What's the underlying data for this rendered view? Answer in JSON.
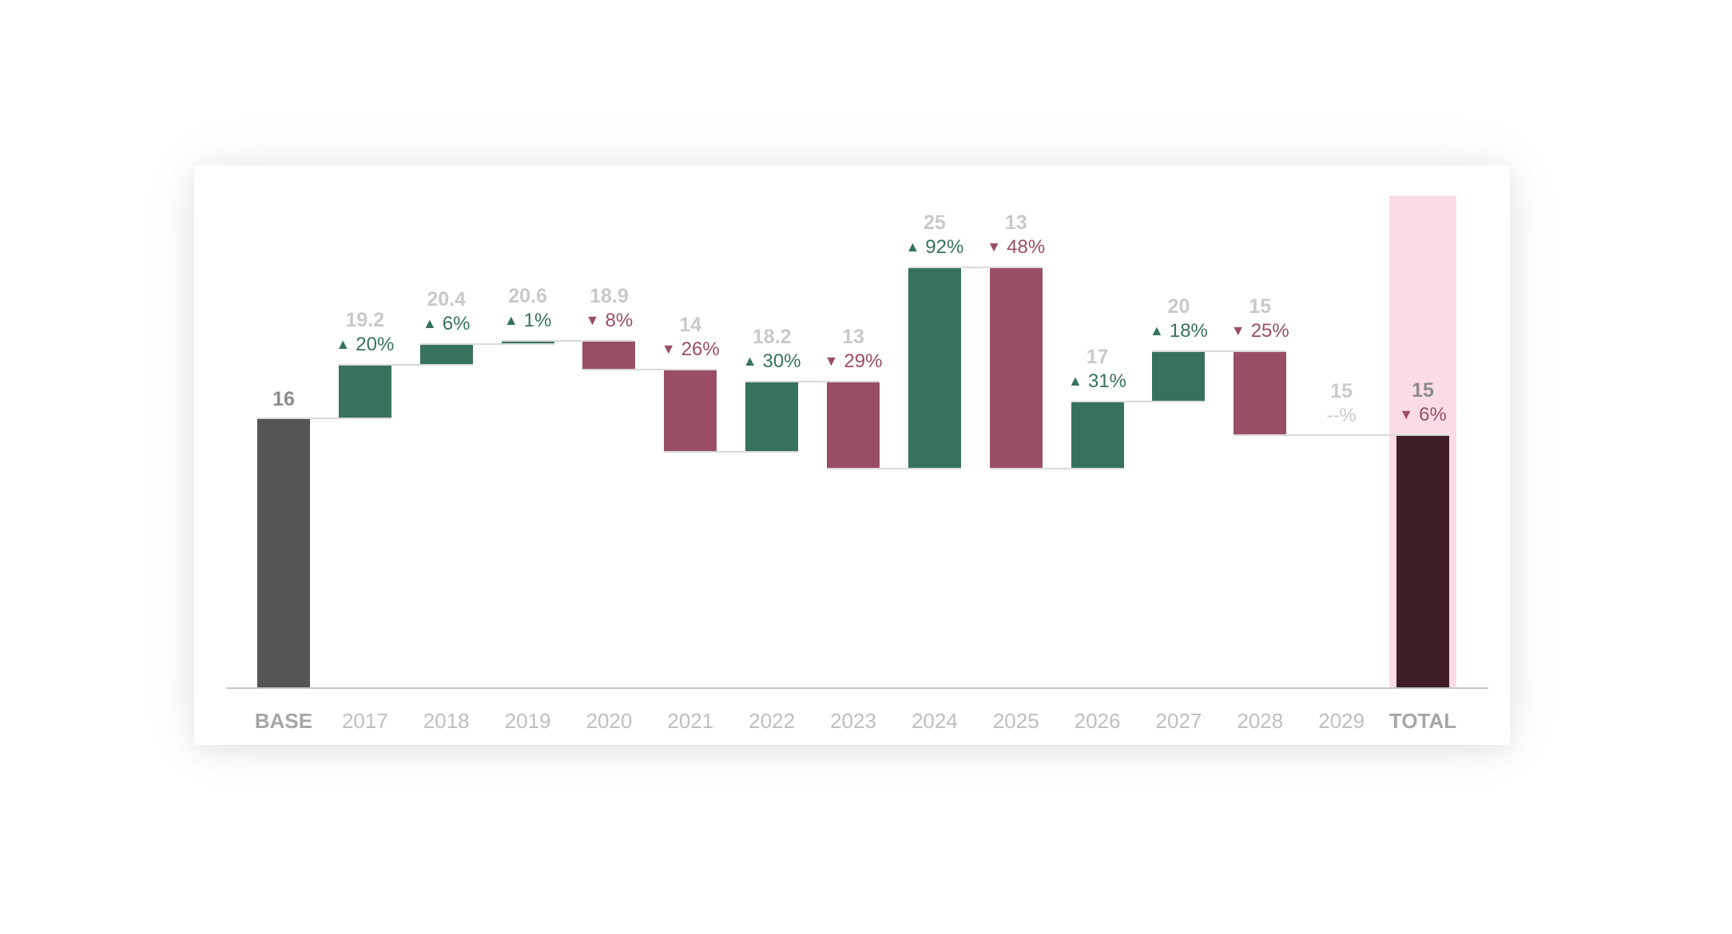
{
  "chart_data": {
    "type": "bar",
    "subtype": "waterfall",
    "title": "",
    "ylim": [
      0,
      29.3
    ],
    "grid": false,
    "legend": false,
    "categories": [
      "BASE",
      "2017",
      "2018",
      "2019",
      "2020",
      "2021",
      "2022",
      "2023",
      "2024",
      "2025",
      "2026",
      "2027",
      "2028",
      "2029",
      "TOTAL"
    ],
    "columns": [
      {
        "label": "BASE",
        "value_label": "16",
        "start": 0,
        "end": 16,
        "kind": "base",
        "delta": null,
        "delta_dir": null
      },
      {
        "label": "2017",
        "value_label": "19.2",
        "start": 16,
        "end": 19.2,
        "kind": "increase",
        "delta": "20%",
        "delta_dir": "up"
      },
      {
        "label": "2018",
        "value_label": "20.4",
        "start": 19.2,
        "end": 20.4,
        "kind": "increase",
        "delta": "6%",
        "delta_dir": "up"
      },
      {
        "label": "2019",
        "value_label": "20.6",
        "start": 20.4,
        "end": 20.6,
        "kind": "increase",
        "delta": "1%",
        "delta_dir": "up"
      },
      {
        "label": "2020",
        "value_label": "18.9",
        "start": 20.6,
        "end": 18.9,
        "kind": "decrease",
        "delta": "8%",
        "delta_dir": "down"
      },
      {
        "label": "2021",
        "value_label": "14",
        "start": 18.9,
        "end": 14,
        "kind": "decrease",
        "delta": "26%",
        "delta_dir": "down"
      },
      {
        "label": "2022",
        "value_label": "18.2",
        "start": 14,
        "end": 18.2,
        "kind": "increase",
        "delta": "30%",
        "delta_dir": "up"
      },
      {
        "label": "2023",
        "value_label": "13",
        "start": 18.2,
        "end": 13,
        "kind": "decrease",
        "delta": "29%",
        "delta_dir": "down"
      },
      {
        "label": "2024",
        "value_label": "25",
        "start": 13,
        "end": 25,
        "kind": "increase",
        "delta": "92%",
        "delta_dir": "up"
      },
      {
        "label": "2025",
        "value_label": "13",
        "start": 25,
        "end": 13,
        "kind": "decrease",
        "delta": "48%",
        "delta_dir": "down"
      },
      {
        "label": "2026",
        "value_label": "17",
        "start": 13,
        "end": 17,
        "kind": "increase",
        "delta": "31%",
        "delta_dir": "up"
      },
      {
        "label": "2027",
        "value_label": "20",
        "start": 17,
        "end": 20,
        "kind": "increase",
        "delta": "18%",
        "delta_dir": "up"
      },
      {
        "label": "2028",
        "value_label": "15",
        "start": 20,
        "end": 15,
        "kind": "decrease",
        "delta": "25%",
        "delta_dir": "down"
      },
      {
        "label": "2029",
        "value_label": "15",
        "start": 15,
        "end": 15,
        "kind": "none",
        "delta": "--%",
        "delta_dir": "none"
      },
      {
        "label": "TOTAL",
        "value_label": "15",
        "start": 0,
        "end": 15,
        "kind": "total",
        "delta": "6%",
        "delta_dir": "down",
        "band": true
      }
    ],
    "icons": {
      "up_triangle": "▲",
      "down_triangle": "▼"
    },
    "colors": {
      "increase": "#37725D",
      "decrease": "#9A4E63",
      "base": "#555555",
      "total": "#3F1E26",
      "total_band": "#FBDCE5",
      "connector": "#D9D9D9",
      "axis_line": "#C6C6C6",
      "value_label_year": "#C9C9C9",
      "value_label_anchor": "#8C8C8C",
      "delta_up_text": "#37725D",
      "delta_down_text": "#9A4E63",
      "delta_none_text": "#C9C9C9",
      "axis_label_year": "#BFBFBF",
      "axis_label_anchor": "#A6A6A6"
    }
  }
}
